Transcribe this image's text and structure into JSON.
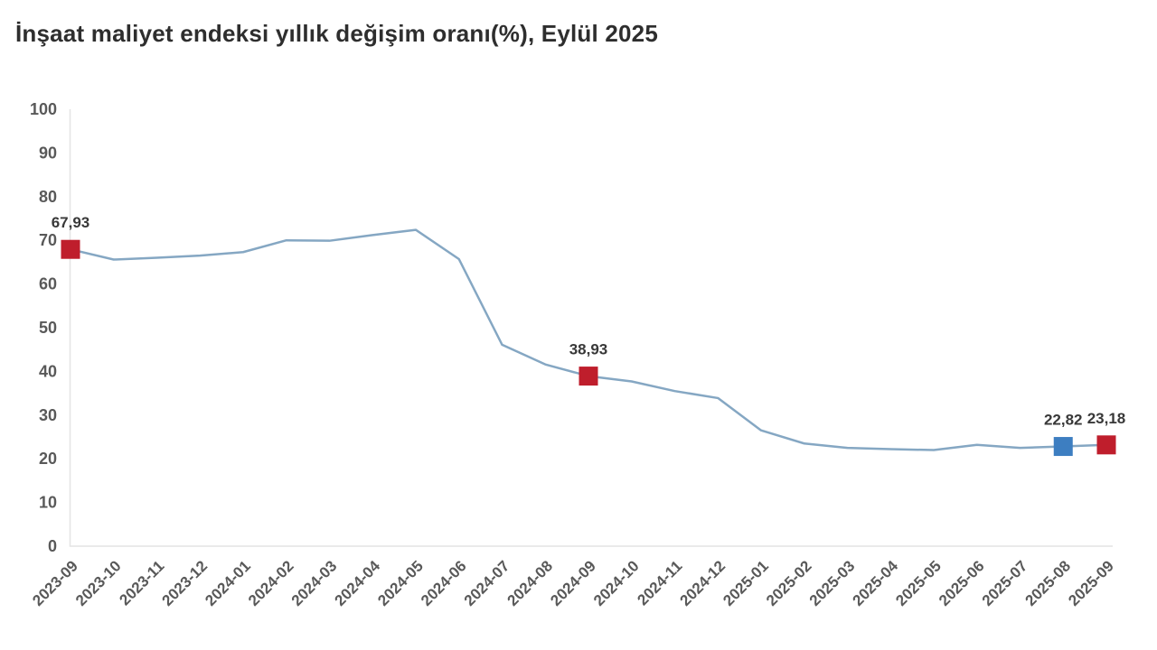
{
  "chart_data": {
    "type": "line",
    "title": "İnşaat maliyet endeksi yıllık değişim oranı(%), Eylül 2025",
    "xlabel": "",
    "ylabel": "",
    "ylim": [
      0,
      100
    ],
    "y_ticks": [
      0,
      10,
      20,
      30,
      40,
      50,
      60,
      70,
      80,
      90,
      100
    ],
    "grid": false,
    "legend": false,
    "x": [
      "2023-09",
      "2023-10",
      "2023-11",
      "2023-12",
      "2024-01",
      "2024-02",
      "2024-03",
      "2024-04",
      "2024-05",
      "2024-06",
      "2024-07",
      "2024-08",
      "2024-09",
      "2024-10",
      "2024-11",
      "2024-12",
      "2025-01",
      "2025-02",
      "2025-03",
      "2025-04",
      "2025-05",
      "2025-06",
      "2025-07",
      "2025-08",
      "2025-09"
    ],
    "values": [
      67.93,
      65.6,
      66.0,
      66.5,
      67.3,
      70.0,
      69.9,
      71.2,
      72.4,
      65.7,
      46.1,
      41.6,
      38.93,
      37.7,
      35.5,
      33.9,
      26.5,
      23.5,
      22.5,
      22.2,
      22.0,
      23.2,
      22.5,
      22.82,
      23.18
    ],
    "annotated_points": [
      {
        "x": "2023-09",
        "value_label": "67,93",
        "marker_color": "#bf1e2c"
      },
      {
        "x": "2024-09",
        "value_label": "38,93",
        "marker_color": "#bf1e2c"
      },
      {
        "x": "2025-08",
        "value_label": "22,82",
        "marker_color": "#3d7ec1"
      },
      {
        "x": "2025-09",
        "value_label": "23,18",
        "marker_color": "#bf1e2c"
      }
    ],
    "colors": {
      "line": "#85a7c3",
      "axis": "#e4e4e4",
      "highlight_red": "#bf1e2c",
      "highlight_blue": "#3d7ec1"
    }
  }
}
